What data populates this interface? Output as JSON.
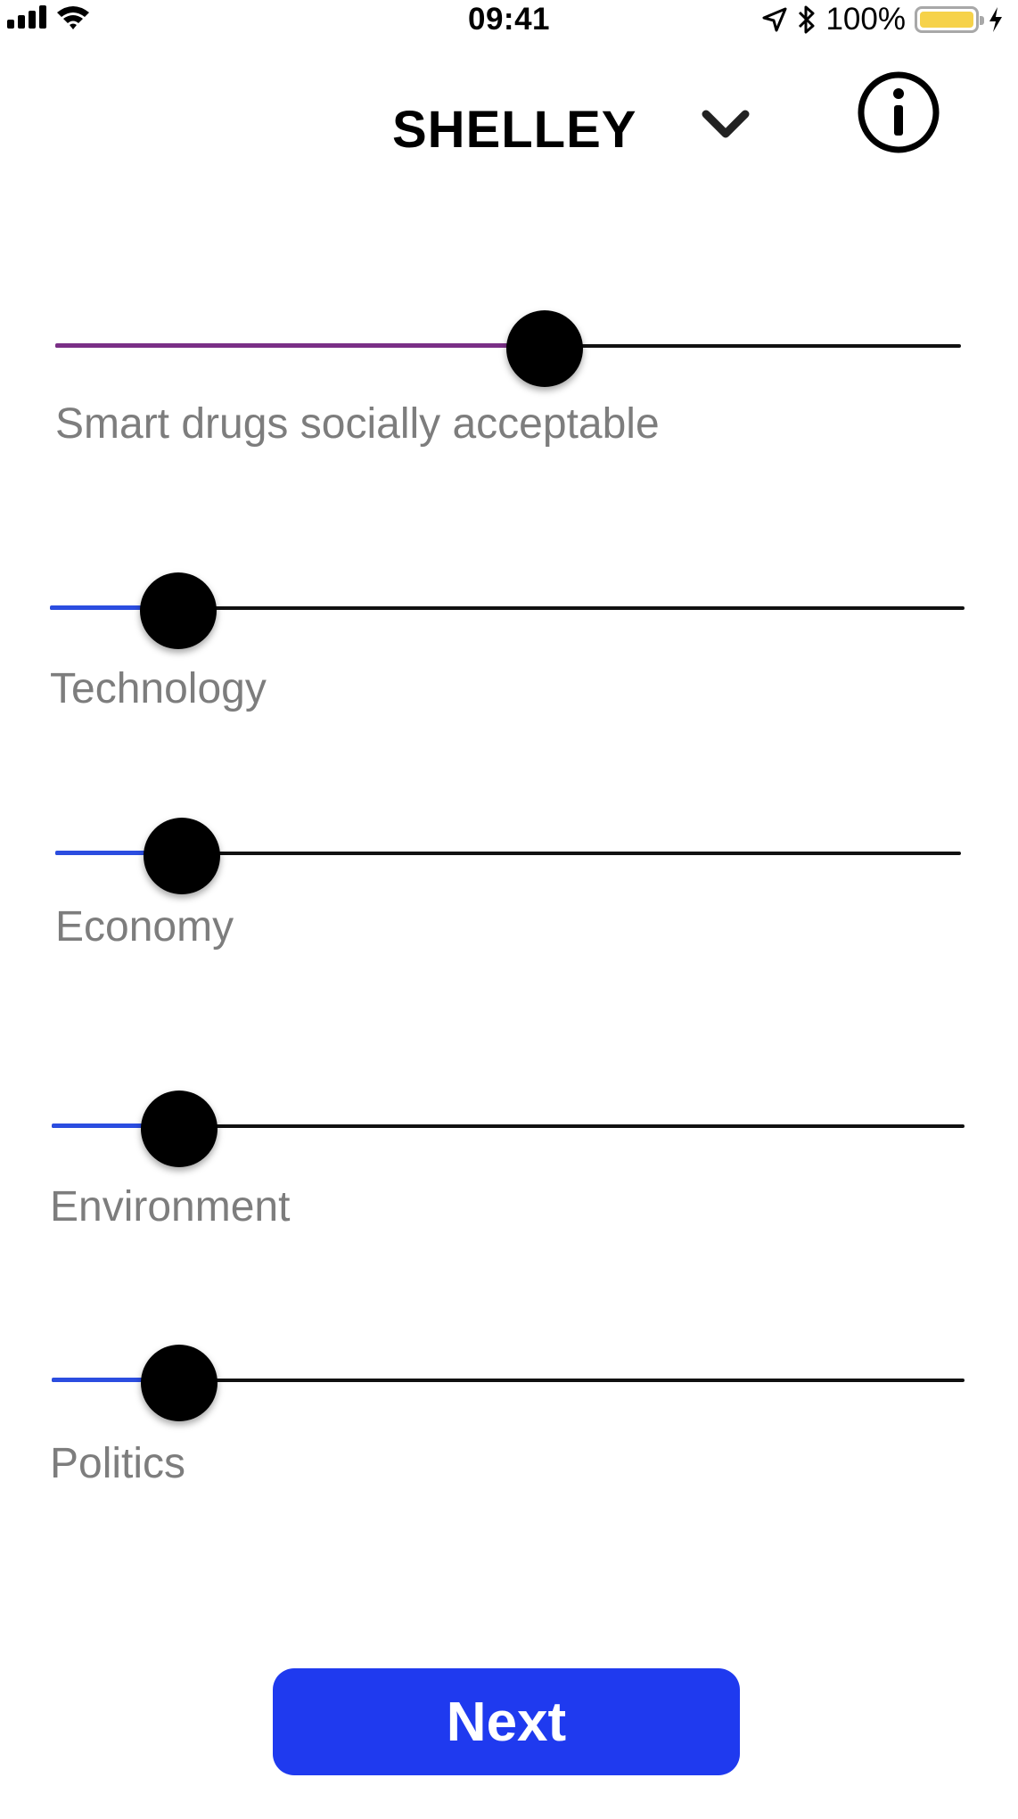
{
  "status_bar": {
    "time": "09:41",
    "battery_percent": "100%",
    "battery_level": 1.0,
    "battery_color": "#f6d24a",
    "icons": [
      "signal-icon",
      "wifi-icon",
      "location-arrow-icon",
      "bluetooth-icon",
      "battery-icon",
      "charging-bolt-icon"
    ]
  },
  "header": {
    "title": "SHELLEY",
    "dropdown_icon": "chevron-down-icon",
    "info_icon": "info-icon"
  },
  "sliders": [
    {
      "label": "Smart drugs socially acceptable",
      "value": 0.54,
      "fill_color": "#7a2f86"
    },
    {
      "label": "Technology",
      "value": 0.14,
      "fill_color": "#2b4de0"
    },
    {
      "label": "Economy",
      "value": 0.14,
      "fill_color": "#2b4de0"
    },
    {
      "label": "Environment",
      "value": 0.14,
      "fill_color": "#2b4de0"
    },
    {
      "label": "Politics",
      "value": 0.14,
      "fill_color": "#2b4de0"
    }
  ],
  "next_button": {
    "label": "Next",
    "color": "#1f3aef"
  }
}
